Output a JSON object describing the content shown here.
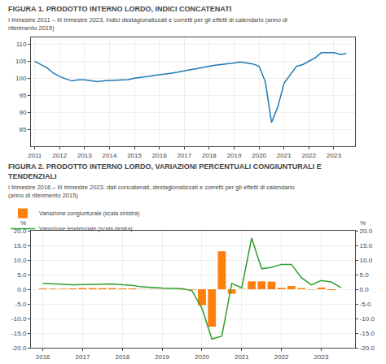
{
  "chart_data": [
    {
      "type": "line",
      "title": "FIGURA 1. PRODOTTO INTERNO LORDO, INDICI CONCATENATI",
      "subtitle": "I trimestre 2011 – III trimestre 2023, indici destagionalizzati e corretti per gli effetti di calendario (anno di riferimento 2015)",
      "x": [
        2011.0,
        2011.25,
        2011.5,
        2011.75,
        2012.0,
        2012.25,
        2012.5,
        2012.75,
        2013.0,
        2013.25,
        2013.5,
        2013.75,
        2014.0,
        2014.25,
        2014.5,
        2014.75,
        2015.0,
        2015.25,
        2015.5,
        2015.75,
        2016.0,
        2016.25,
        2016.5,
        2016.75,
        2017.0,
        2017.25,
        2017.5,
        2017.75,
        2018.0,
        2018.25,
        2018.5,
        2018.75,
        2019.0,
        2019.25,
        2019.5,
        2019.75,
        2020.0,
        2020.25,
        2020.5,
        2020.75,
        2021.0,
        2021.25,
        2021.5,
        2021.75,
        2022.0,
        2022.25,
        2022.5,
        2022.75,
        2023.0,
        2023.25,
        2023.5
      ],
      "values": [
        105.0,
        104.0,
        103.0,
        101.5,
        100.5,
        99.8,
        99.2,
        99.5,
        99.5,
        99.3,
        99.0,
        99.2,
        99.3,
        99.5,
        99.5,
        99.6,
        100.0,
        100.2,
        100.5,
        100.8,
        101.0,
        101.3,
        101.5,
        101.8,
        102.2,
        102.5,
        102.8,
        103.2,
        103.5,
        103.8,
        104.0,
        104.2,
        104.5,
        104.8,
        104.5,
        104.2,
        103.5,
        99.0,
        87.0,
        91.5,
        98.5,
        101.0,
        103.5,
        104.0,
        105.0,
        106.0,
        107.5,
        107.5,
        107.5,
        107.0,
        107.2
      ],
      "xlim": [
        2010.85,
        2023.85
      ],
      "xticks": [
        2011,
        2012,
        2013,
        2014,
        2015,
        2016,
        2017,
        2018,
        2019,
        2020,
        2021,
        2022,
        2023
      ],
      "ylim": [
        80,
        112
      ],
      "yticks": [
        85,
        90,
        95,
        100,
        105,
        110
      ],
      "grid": true
    },
    {
      "type": "bar",
      "title": "FIGURA 2. PRODOTTO INTERNO LORDO, VARIAZIONI PERCENTUALI CONGIUNTURALI E TENDENZIALI",
      "subtitle": "I trimestre 2016 – III trimestre 2023, dati concatenati, destagionalizzati e corretti per gli effetti di calendario (anno di riferimento 2015)",
      "x": [
        2016.0,
        2016.25,
        2016.5,
        2016.75,
        2017.0,
        2017.25,
        2017.5,
        2017.75,
        2018.0,
        2018.25,
        2018.5,
        2018.75,
        2019.0,
        2019.25,
        2019.5,
        2019.75,
        2020.0,
        2020.25,
        2020.5,
        2020.75,
        2021.0,
        2021.25,
        2021.5,
        2021.75,
        2022.0,
        2022.25,
        2022.5,
        2022.75,
        2023.0,
        2023.25,
        2023.5
      ],
      "series": [
        {
          "name": "Variazione congiunturale (scala sinistra)",
          "type": "bar",
          "values": [
            0.3,
            0.2,
            0.2,
            0.3,
            0.4,
            0.4,
            0.4,
            0.4,
            0.3,
            0.3,
            0.1,
            0.1,
            0.1,
            0.0,
            -0.1,
            -0.2,
            -5.5,
            -12.8,
            13.0,
            -1.5,
            0.1,
            2.7,
            2.7,
            2.6,
            0.5,
            1.1,
            0.4,
            -0.1,
            0.6,
            -0.3,
            0.0
          ]
        },
        {
          "name": "Variazione tendenziale (scala destra)",
          "type": "line",
          "axis": "y2",
          "values": [
            2.0,
            1.8,
            1.5,
            1.5,
            1.6,
            1.6,
            1.7,
            1.8,
            1.5,
            1.3,
            0.8,
            0.5,
            0.4,
            0.3,
            0.2,
            -0.5,
            -6.5,
            -17.0,
            -16.0,
            2.0,
            0.5,
            17.5,
            7.0,
            7.5,
            8.5,
            8.5,
            4.0,
            1.5,
            3.0,
            2.5,
            0.5
          ]
        }
      ],
      "xlim": [
        2015.7,
        2023.85
      ],
      "xticks": [
        2016,
        2017,
        2018,
        2019,
        2020,
        2021,
        2022,
        2023
      ],
      "ylim": [
        -20.0,
        20.0
      ],
      "yticks": [
        {
          "value": -20.0,
          "label": "-20.0"
        },
        {
          "value": -15.0,
          "label": "-15.0"
        },
        {
          "value": -10.0,
          "label": "-10.0"
        },
        {
          "value": -5.0,
          "label": "-5.0"
        },
        {
          "value": 0.0,
          "label": "0.0"
        },
        {
          "value": 5.0,
          "label": "5.0"
        },
        {
          "value": 10.0,
          "label": "10.0"
        },
        {
          "value": 15.0,
          "label": "15.0"
        },
        {
          "value": 20.0,
          "label": "20.0"
        }
      ],
      "y2lim": [
        -20.0,
        20.0
      ],
      "y2ticks": [
        {
          "value": -20.0,
          "label": "-20.0"
        },
        {
          "value": -15.0,
          "label": "-15.0"
        },
        {
          "value": -10.0,
          "label": "-10.0"
        },
        {
          "value": -5.0,
          "label": "-5.0"
        },
        {
          "value": 0.0,
          "label": "0.0"
        },
        {
          "value": 5.0,
          "label": "5.0"
        },
        {
          "value": 10.0,
          "label": "10.0"
        },
        {
          "value": 15.0,
          "label": "15.0"
        },
        {
          "value": 20.0,
          "label": "20.0"
        }
      ],
      "ylabel": "%",
      "y2label": "%",
      "legend": "upper left",
      "grid": true
    }
  ]
}
